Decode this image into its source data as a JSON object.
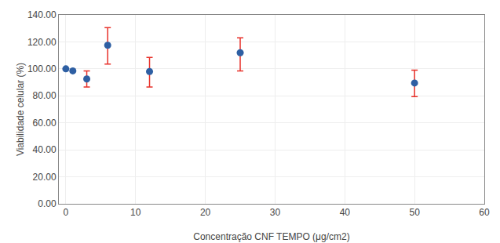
{
  "chart_data": {
    "type": "scatter",
    "x": [
      0,
      1,
      3,
      6,
      12,
      25,
      50
    ],
    "values": [
      100.0,
      98.5,
      92.5,
      117.5,
      98.0,
      112.0,
      89.5
    ],
    "color": "#2e5fa3",
    "errors": {
      "plus": [
        0.0,
        0.0,
        6.0,
        13.0,
        10.5,
        11.0,
        9.5
      ],
      "minus": [
        0.0,
        0.0,
        6.0,
        14.0,
        11.5,
        13.5,
        10.0
      ],
      "color": "#e8312a"
    },
    "xlabel": "Concentração CNF TEMPO (μg/cm2)",
    "ylabel": "Viabilidade celular (%)",
    "xlim": [
      -1,
      60
    ],
    "ylim": [
      0.0,
      140.0
    ],
    "xticks": [
      0,
      10,
      20,
      30,
      40,
      50,
      60
    ],
    "yticks": [
      {
        "value": 0.0,
        "label": "0.00"
      },
      {
        "value": 20.0,
        "label": "20.00"
      },
      {
        "value": 40.0,
        "label": "40.00"
      },
      {
        "value": 60.0,
        "label": "60.00"
      },
      {
        "value": 80.0,
        "label": "80.00"
      },
      {
        "value": 100.0,
        "label": "100.00"
      },
      {
        "value": 120.0,
        "label": "120.00"
      },
      {
        "value": 140.0,
        "label": "140.00"
      }
    ],
    "grid": true
  }
}
